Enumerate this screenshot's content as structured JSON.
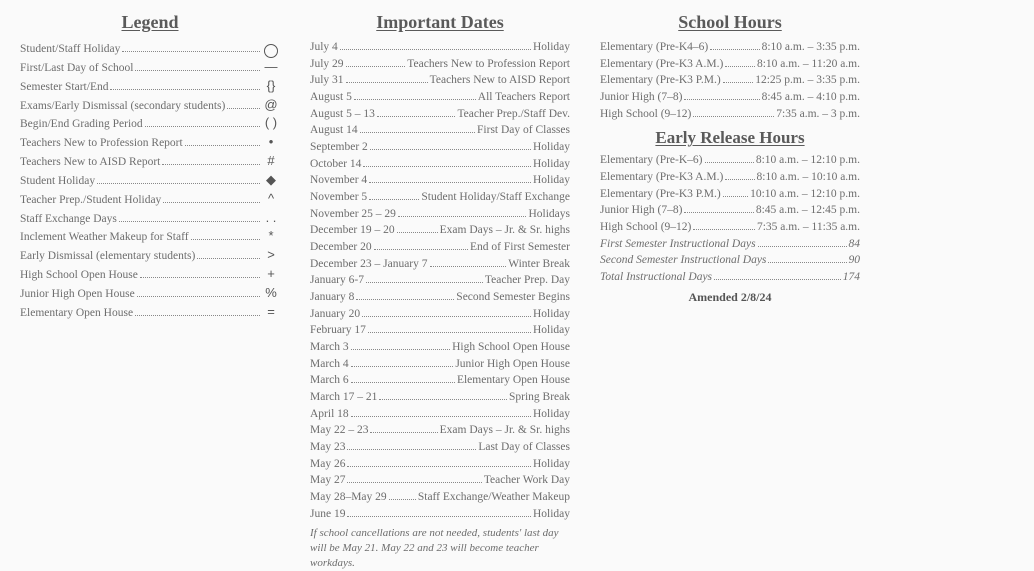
{
  "legend": {
    "title": "Legend",
    "items": [
      {
        "label": "Student/Staff Holiday",
        "symbol": "circle"
      },
      {
        "label": "First/Last Day of School",
        "symbol": "—"
      },
      {
        "label": "Semester Start/End",
        "symbol": "{}"
      },
      {
        "label": "Exams/Early Dismissal (secondary students)",
        "symbol": "@"
      },
      {
        "label": "Begin/End Grading Period",
        "symbol": "( )"
      },
      {
        "label": "Teachers New to Profession Report",
        "symbol": "•"
      },
      {
        "label": "Teachers New to AISD Report",
        "symbol": "#"
      },
      {
        "label": "Student Holiday",
        "symbol": "◆"
      },
      {
        "label": "Teacher Prep./Student Holiday",
        "symbol": "^"
      },
      {
        "label": "Staff Exchange Days",
        "symbol": ". ."
      },
      {
        "label": "Inclement Weather Makeup for Staff",
        "symbol": "*"
      },
      {
        "label": "Early Dismissal (elementary students)",
        "symbol": ">"
      },
      {
        "label": "High School Open House",
        "symbol": "+"
      },
      {
        "label": "Junior High Open House",
        "symbol": "%"
      },
      {
        "label": "Elementary Open House",
        "symbol": "="
      }
    ]
  },
  "dates": {
    "title": "Important Dates",
    "items": [
      {
        "date": "July 4",
        "event": "Holiday"
      },
      {
        "date": "July 29",
        "event": "Teachers New to Profession Report"
      },
      {
        "date": "July 31",
        "event": "Teachers New to AISD Report"
      },
      {
        "date": "August 5",
        "event": "All Teachers Report"
      },
      {
        "date": "August 5 – 13",
        "event": "Teacher Prep./Staff Dev."
      },
      {
        "date": "August 14",
        "event": "First Day of Classes"
      },
      {
        "date": "September 2",
        "event": "Holiday"
      },
      {
        "date": "October 14",
        "event": "Holiday"
      },
      {
        "date": "November 4",
        "event": "Holiday"
      },
      {
        "date": "November 5",
        "event": "Student Holiday/Staff Exchange"
      },
      {
        "date": "November 25 – 29",
        "event": "Holidays"
      },
      {
        "date": "December 19 – 20",
        "event": "Exam Days – Jr. & Sr. highs"
      },
      {
        "date": "December 20",
        "event": "End of First Semester"
      },
      {
        "date": "December 23 – January 7",
        "event": "Winter Break"
      },
      {
        "date": "January 6-7",
        "event": "Teacher Prep. Day"
      },
      {
        "date": "January 8",
        "event": "Second Semester Begins"
      },
      {
        "date": "January 20",
        "event": "Holiday"
      },
      {
        "date": "February 17",
        "event": "Holiday"
      },
      {
        "date": "March 3",
        "event": "High School Open House"
      },
      {
        "date": "March 4",
        "event": "Junior High Open House"
      },
      {
        "date": "March 6",
        "event": "Elementary Open House"
      },
      {
        "date": "March 17 – 21",
        "event": "Spring Break"
      },
      {
        "date": "April 18",
        "event": "Holiday"
      },
      {
        "date": "May 22 – 23",
        "event": "Exam Days – Jr. & Sr. highs"
      },
      {
        "date": "May 23",
        "event": "Last Day of Classes"
      },
      {
        "date": "May 26",
        "event": "Holiday"
      },
      {
        "date": "May 27",
        "event": "Teacher Work Day"
      },
      {
        "date": " May 28–May 29",
        "event": "Staff Exchange/Weather  Makeup"
      },
      {
        "date": "June 19",
        "event": "Holiday"
      }
    ],
    "footnote": "If school cancellations are not needed, students' last day will be May 21.  May 22 and 23 will become teacher workdays."
  },
  "hours": {
    "title": "School Hours",
    "items": [
      {
        "label": "Elementary (Pre-K4–6)",
        "time": "8:10 a.m. – 3:35 p.m."
      },
      {
        "label": "Elementary (Pre-K3 A.M.)",
        "time": "8:10 a.m. – 11:20 a.m."
      },
      {
        "label": "Elementary (Pre-K3 P.M.)",
        "time": "12:25 p.m. – 3:35 p.m."
      },
      {
        "label": "Junior High (7–8)",
        "time": "8:45 a.m. – 4:10 p.m."
      },
      {
        "label": "High School (9–12)",
        "time": "7:35 a.m. – 3 p.m."
      }
    ],
    "early_title": "Early Release Hours",
    "early_items": [
      {
        "label": "Elementary (Pre-K–6)",
        "time": "8:10 a.m. – 12:10 p.m."
      },
      {
        "label": "Elementary (Pre-K3 A.M.)",
        "time": "8:10 a.m. – 10:10 a.m."
      },
      {
        "label": "Elementary (Pre-K3 P.M.)",
        "time": "10:10 a.m. – 12:10 p.m."
      },
      {
        "label": "Junior High (7–8)",
        "time": "8:45 a.m. – 12:45 p.m."
      },
      {
        "label": "High School (9–12)",
        "time": "7:35 a.m. – 11:35 a.m."
      }
    ],
    "instructional": [
      {
        "label": "First Semester Instructional Days",
        "val": "84"
      },
      {
        "label": "Second Semester Instructional Days",
        "val": "90"
      },
      {
        "label": "Total Instructional Days",
        "val": "174"
      }
    ],
    "amended": "Amended 2/8/24"
  }
}
